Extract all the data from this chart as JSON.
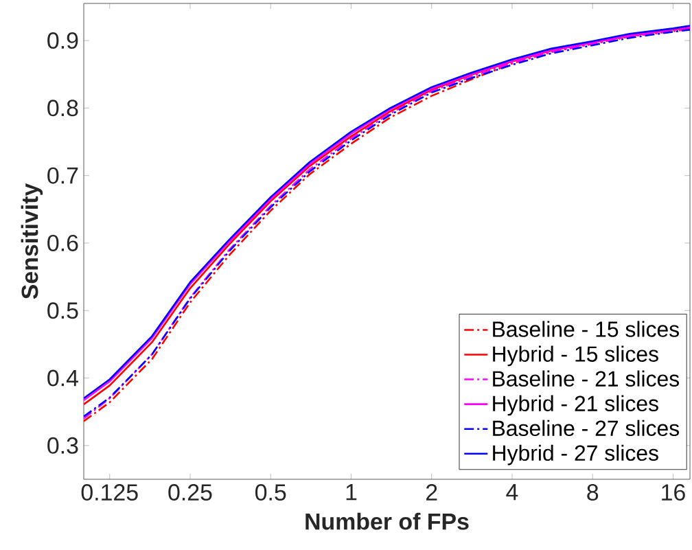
{
  "chart_data": {
    "type": "line",
    "xlabel": "Number of FPs",
    "ylabel": "Sensitivity",
    "log": "x",
    "xlim": [
      0.1,
      18.5
    ],
    "ylim": [
      0.25,
      0.955
    ],
    "xticks": [
      0.125,
      0.25,
      0.5,
      1,
      2,
      4,
      8,
      16
    ],
    "yticks": [
      0.3,
      0.4,
      0.5,
      0.6,
      0.7,
      0.8,
      0.9
    ],
    "grid": false,
    "legend": "bottom right",
    "marker": "none",
    "x": [
      0.1,
      0.125,
      0.18,
      0.25,
      0.35,
      0.5,
      0.7,
      1,
      1.4,
      2,
      2.8,
      4,
      5.6,
      8,
      11,
      16,
      18.5
    ],
    "series": [
      {
        "name": "Baseline - 15 slices",
        "color": "#ff0000",
        "line_style": "dashdot",
        "values": [
          0.336,
          0.364,
          0.428,
          0.512,
          0.582,
          0.648,
          0.702,
          0.747,
          0.786,
          0.818,
          0.842,
          0.866,
          0.883,
          0.895,
          0.906,
          0.914,
          0.917
        ]
      },
      {
        "name": "Hybrid - 15 slices",
        "color": "#ff0000",
        "line_style": "solid",
        "values": [
          0.361,
          0.389,
          0.453,
          0.533,
          0.598,
          0.662,
          0.714,
          0.758,
          0.795,
          0.827,
          0.849,
          0.869,
          0.885,
          0.897,
          0.907,
          0.916,
          0.919
        ]
      },
      {
        "name": "Baseline - 21 slices",
        "color": "#ff00ff",
        "line_style": "dashdot",
        "values": [
          0.34,
          0.37,
          0.435,
          0.519,
          0.59,
          0.655,
          0.709,
          0.755,
          0.792,
          0.825,
          0.846,
          0.867,
          0.883,
          0.895,
          0.906,
          0.914,
          0.917
        ]
      },
      {
        "name": "Hybrid - 21 slices",
        "color": "#ff00ff",
        "line_style": "solid",
        "values": [
          0.367,
          0.395,
          0.459,
          0.539,
          0.602,
          0.665,
          0.717,
          0.762,
          0.798,
          0.829,
          0.85,
          0.87,
          0.886,
          0.897,
          0.908,
          0.917,
          0.92
        ]
      },
      {
        "name": "Baseline - 27 slices",
        "color": "#0000ff",
        "line_style": "dashdot",
        "values": [
          0.343,
          0.371,
          0.435,
          0.518,
          0.588,
          0.653,
          0.706,
          0.752,
          0.79,
          0.823,
          0.844,
          0.864,
          0.881,
          0.893,
          0.904,
          0.913,
          0.916
        ]
      },
      {
        "name": "Hybrid - 27 slices",
        "color": "#0000ff",
        "line_style": "solid",
        "values": [
          0.37,
          0.398,
          0.462,
          0.542,
          0.605,
          0.668,
          0.72,
          0.765,
          0.8,
          0.831,
          0.852,
          0.872,
          0.888,
          0.899,
          0.91,
          0.918,
          0.922
        ]
      }
    ]
  }
}
